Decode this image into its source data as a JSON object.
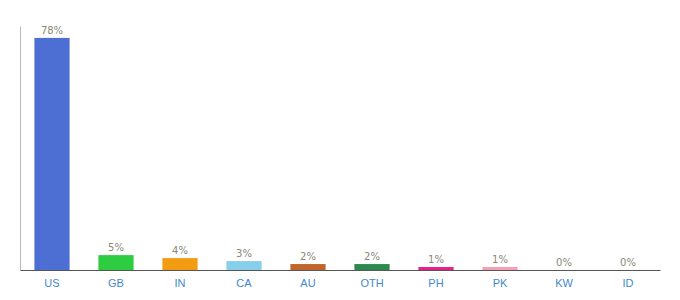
{
  "chart_data": {
    "type": "bar",
    "categories": [
      "US",
      "GB",
      "IN",
      "CA",
      "AU",
      "OTH",
      "PH",
      "PK",
      "KW",
      "ID"
    ],
    "values": [
      78,
      5,
      4,
      3,
      2,
      2,
      1,
      1,
      0,
      0
    ],
    "value_labels": [
      "78%",
      "5%",
      "4%",
      "3%",
      "2%",
      "2%",
      "1%",
      "1%",
      "0%",
      "0%"
    ],
    "data_labels": true,
    "colors": [
      "#4d6fd4",
      "#2ecc40",
      "#f39c12",
      "#87ceeb",
      "#c0652b",
      "#2d8a4e",
      "#e91e8c",
      "#f4a0b5",
      "#cccccc",
      "#cccccc"
    ],
    "ylim": [
      0,
      82
    ],
    "grid": false,
    "tick_labels": "x"
  }
}
